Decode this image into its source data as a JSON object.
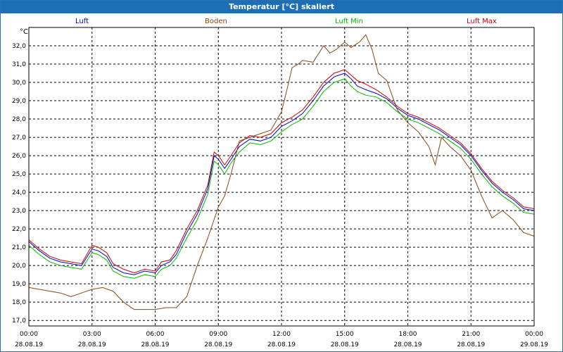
{
  "window": {
    "title": "Temperatur [°C] skaliert"
  },
  "chart_data": {
    "type": "line",
    "title": "Temperatur [°C] skaliert",
    "unit_label": "°C",
    "xlabel": "",
    "ylabel": "°C",
    "ylim": [
      16.7,
      33.0
    ],
    "xlim": [
      0,
      24
    ],
    "grid": true,
    "y_ticks": [
      "17,0",
      "18,0",
      "19,0",
      "20,0",
      "21,0",
      "22,0",
      "23,0",
      "24,0",
      "25,0",
      "26,0",
      "27,0",
      "28,0",
      "29,0",
      "30,0",
      "31,0",
      "32,0"
    ],
    "x_ticks": [
      {
        "h": 0,
        "time": "00:00",
        "date": "28.08.19"
      },
      {
        "h": 3,
        "time": "03:00",
        "date": "28.08.19"
      },
      {
        "h": 6,
        "time": "06:00",
        "date": "28.08.19"
      },
      {
        "h": 9,
        "time": "09:00",
        "date": "28.08.19"
      },
      {
        "h": 12,
        "time": "12:00",
        "date": "28.08.19"
      },
      {
        "h": 15,
        "time": "15:00",
        "date": "28.08.19"
      },
      {
        "h": 18,
        "time": "18:00",
        "date": "28.08.19"
      },
      {
        "h": 21,
        "time": "21:00",
        "date": "28.08.19"
      },
      {
        "h": 24,
        "time": "00:00",
        "date": "29.08.19"
      }
    ],
    "series": [
      {
        "name": "Luft",
        "color": "#0000cc",
        "x": [
          0,
          0.5,
          1,
          1.5,
          2,
          2.5,
          3,
          3.3,
          3.7,
          4,
          4.5,
          5,
          5.5,
          6,
          6.3,
          6.7,
          7,
          7.5,
          8,
          8.5,
          8.8,
          9,
          9.3,
          9.6,
          10,
          10.5,
          11,
          11.5,
          12,
          12.5,
          13,
          13.5,
          14,
          14.5,
          15,
          15.3,
          15.6,
          16,
          16.5,
          17,
          17.5,
          18,
          18.5,
          19,
          19.5,
          20,
          20.5,
          21,
          21.5,
          22,
          22.5,
          23,
          23.5,
          24
        ],
        "y": [
          21.3,
          20.8,
          20.4,
          20.2,
          20.1,
          20.0,
          20.9,
          20.8,
          20.5,
          19.9,
          19.6,
          19.5,
          19.7,
          19.6,
          20.0,
          20.2,
          20.6,
          21.8,
          22.8,
          24.2,
          26.0,
          25.8,
          25.3,
          25.8,
          26.5,
          26.9,
          26.8,
          27.0,
          27.6,
          27.9,
          28.3,
          29.0,
          29.8,
          30.3,
          30.5,
          30.2,
          29.8,
          29.6,
          29.4,
          29.1,
          28.6,
          28.2,
          28.0,
          27.7,
          27.4,
          27.0,
          26.6,
          26.0,
          25.2,
          24.5,
          24.0,
          23.6,
          23.1,
          23.0
        ]
      },
      {
        "name": "Boden",
        "color": "#8b4513",
        "x": [
          0,
          0.5,
          1,
          1.5,
          2,
          2.5,
          3,
          3.5,
          4,
          4.5,
          5,
          5.5,
          6,
          6.5,
          7,
          7.5,
          8,
          8.5,
          9,
          9.3,
          9.6,
          10,
          10.5,
          11,
          11.5,
          12,
          12.3,
          12.5,
          12.8,
          13,
          13.5,
          14,
          14.3,
          14.6,
          15,
          15.3,
          15.7,
          16,
          16.3,
          16.6,
          17,
          17.5,
          18,
          18.5,
          19,
          19.3,
          19.6,
          20,
          20.5,
          21,
          21.5,
          22,
          22.5,
          23,
          23.5,
          24
        ],
        "y": [
          18.8,
          18.7,
          18.6,
          18.5,
          18.3,
          18.5,
          18.7,
          18.8,
          18.6,
          18.0,
          17.6,
          17.6,
          17.6,
          17.7,
          17.7,
          18.3,
          20.0,
          21.5,
          23.2,
          23.8,
          25.0,
          26.8,
          27.0,
          27.2,
          27.4,
          28.4,
          29.8,
          30.8,
          31.0,
          31.2,
          31.1,
          32.0,
          31.6,
          31.8,
          32.2,
          31.9,
          32.2,
          32.6,
          31.8,
          30.5,
          30.1,
          28.5,
          27.8,
          27.3,
          26.5,
          25.5,
          27.0,
          26.5,
          26.0,
          25.2,
          23.8,
          22.6,
          23.0,
          22.5,
          21.8,
          21.6
        ]
      },
      {
        "name": "Luft Min",
        "color": "#00bb00",
        "x": [
          0,
          0.5,
          1,
          1.5,
          2,
          2.5,
          3,
          3.3,
          3.7,
          4,
          4.5,
          5,
          5.5,
          6,
          6.3,
          6.7,
          7,
          7.5,
          8,
          8.5,
          8.8,
          9,
          9.3,
          9.6,
          10,
          10.5,
          11,
          11.5,
          12,
          12.5,
          13,
          13.5,
          14,
          14.5,
          15,
          15.3,
          15.6,
          16,
          16.5,
          17,
          17.5,
          18,
          18.5,
          19,
          19.5,
          20,
          20.5,
          21,
          21.5,
          22,
          22.5,
          23,
          23.5,
          24
        ],
        "y": [
          21.1,
          20.6,
          20.2,
          20.0,
          19.9,
          19.8,
          20.7,
          20.6,
          20.3,
          19.7,
          19.4,
          19.3,
          19.5,
          19.4,
          19.8,
          20.0,
          20.4,
          21.5,
          22.5,
          23.9,
          25.7,
          25.5,
          25.0,
          25.6,
          26.2,
          26.7,
          26.6,
          26.8,
          27.3,
          27.7,
          28.0,
          28.7,
          29.5,
          30.0,
          30.2,
          29.8,
          29.5,
          29.3,
          29.2,
          28.9,
          28.4,
          28.0,
          27.8,
          27.5,
          27.2,
          26.8,
          26.4,
          25.8,
          25.0,
          24.3,
          23.8,
          23.4,
          22.9,
          22.8
        ]
      },
      {
        "name": "Luft Max",
        "color": "#cc0000",
        "x": [
          0,
          0.5,
          1,
          1.5,
          2,
          2.5,
          3,
          3.3,
          3.7,
          4,
          4.5,
          5,
          5.5,
          6,
          6.3,
          6.7,
          7,
          7.5,
          8,
          8.5,
          8.8,
          9,
          9.3,
          9.6,
          10,
          10.5,
          11,
          11.5,
          12,
          12.5,
          13,
          13.5,
          14,
          14.5,
          15,
          15.3,
          15.6,
          16,
          16.5,
          17,
          17.5,
          18,
          18.5,
          19,
          19.5,
          20,
          20.5,
          21,
          21.5,
          22,
          22.5,
          23,
          23.5,
          24
        ],
        "y": [
          21.4,
          20.9,
          20.5,
          20.3,
          20.2,
          20.1,
          21.1,
          21.0,
          20.7,
          20.1,
          19.8,
          19.6,
          19.8,
          19.7,
          20.2,
          20.3,
          20.8,
          22.0,
          23.0,
          24.4,
          26.2,
          26.0,
          25.5,
          26.0,
          26.7,
          27.1,
          27.0,
          27.2,
          27.8,
          28.1,
          28.5,
          29.2,
          30.0,
          30.5,
          30.7,
          30.4,
          30.1,
          29.9,
          29.6,
          29.2,
          28.7,
          28.3,
          28.1,
          27.8,
          27.5,
          27.1,
          26.7,
          26.1,
          25.3,
          24.6,
          24.1,
          23.7,
          23.2,
          23.1
        ]
      }
    ]
  }
}
